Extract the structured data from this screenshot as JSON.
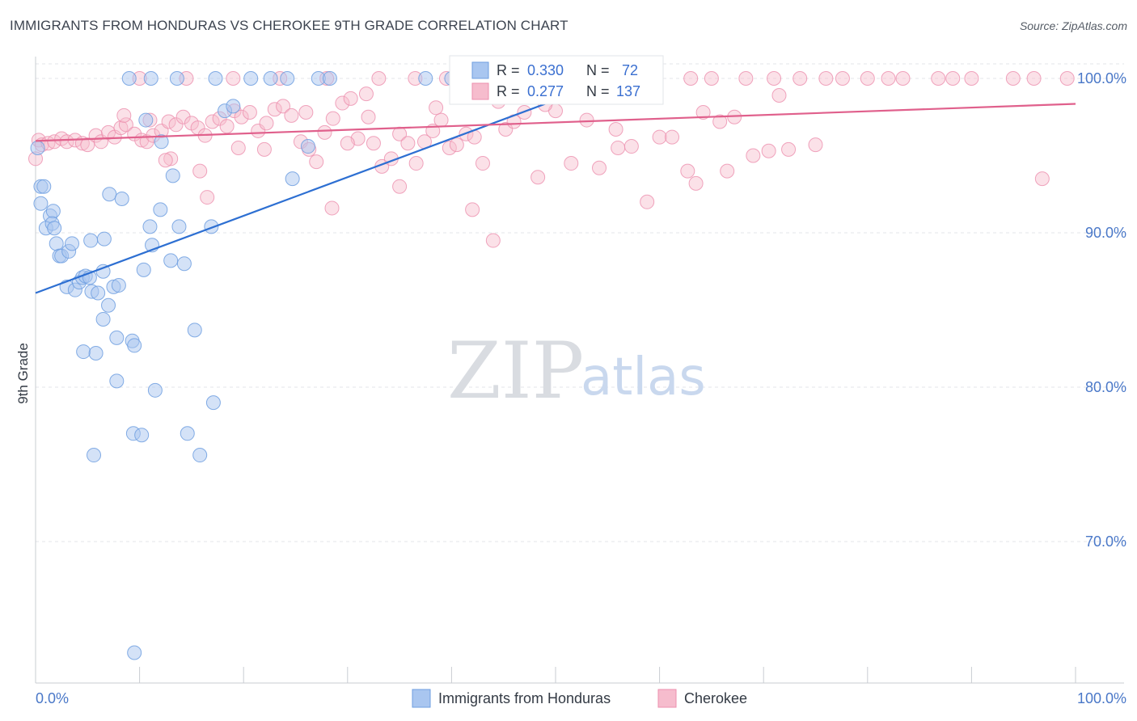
{
  "chart_data": {
    "type": "scatter",
    "title": "IMMIGRANTS FROM HONDURAS VS CHEROKEE 9TH GRADE CORRELATION CHART",
    "source": "Source: ZipAtlas.com",
    "xlabel": "",
    "ylabel": "9th Grade",
    "xlim": [
      0,
      100
    ],
    "ylim": [
      62,
      101.5
    ],
    "x_tick_labels": [
      "0.0%",
      "100.0%"
    ],
    "y_ticks": [
      70,
      80,
      90,
      100
    ],
    "y_tick_labels": [
      "70.0%",
      "80.0%",
      "90.0%",
      "100.0%"
    ],
    "grid": true,
    "watermark": {
      "zip": "ZIP",
      "atlas": "atlas"
    },
    "colors": {
      "honduras_fill": "#a9c6f0",
      "honduras_stroke": "#6f9fe0",
      "honduras_line": "#2d6fd2",
      "cherokee_fill": "#f6bccd",
      "cherokee_stroke": "#ec8fae",
      "cherokee_line": "#e0608c",
      "tick_label": "#4a78c8"
    },
    "legend": {
      "r_label": "R =",
      "n_label": "N =",
      "entries": [
        {
          "name": "Immigrants from Honduras",
          "r": "0.330",
          "n": "72"
        },
        {
          "name": "Cherokee",
          "r": "0.277",
          "n": "137"
        }
      ]
    },
    "series": [
      {
        "name": "Immigrants from Honduras",
        "trend": {
          "x": [
            0,
            50
          ],
          "y": [
            86.1,
            98.6
          ]
        },
        "points": [
          [
            0.2,
            95.5
          ],
          [
            0.5,
            93.0
          ],
          [
            0.8,
            93.0
          ],
          [
            0.5,
            91.9
          ],
          [
            1.4,
            91.1
          ],
          [
            1.7,
            91.4
          ],
          [
            1.0,
            90.3
          ],
          [
            1.6,
            90.6
          ],
          [
            1.8,
            90.3
          ],
          [
            2.0,
            89.3
          ],
          [
            2.3,
            88.5
          ],
          [
            2.5,
            88.5
          ],
          [
            3.2,
            88.8
          ],
          [
            3.5,
            89.3
          ],
          [
            3.0,
            86.5
          ],
          [
            3.8,
            86.3
          ],
          [
            4.2,
            86.8
          ],
          [
            4.5,
            87.1
          ],
          [
            4.8,
            87.2
          ],
          [
            5.2,
            87.1
          ],
          [
            5.4,
            86.2
          ],
          [
            6.0,
            86.1
          ],
          [
            5.3,
            89.5
          ],
          [
            6.5,
            87.5
          ],
          [
            6.6,
            89.6
          ],
          [
            7.0,
            85.3
          ],
          [
            6.5,
            84.4
          ],
          [
            7.5,
            86.5
          ],
          [
            8.0,
            86.6
          ],
          [
            7.1,
            92.5
          ],
          [
            8.3,
            92.2
          ],
          [
            9.3,
            83.0
          ],
          [
            9.5,
            82.7
          ],
          [
            7.8,
            83.2
          ],
          [
            4.6,
            82.3
          ],
          [
            5.8,
            82.2
          ],
          [
            7.8,
            80.4
          ],
          [
            9.4,
            77.0
          ],
          [
            10.2,
            76.9
          ],
          [
            5.6,
            75.6
          ],
          [
            9.5,
            62.8
          ],
          [
            10.4,
            87.6
          ],
          [
            11.2,
            89.2
          ],
          [
            11.0,
            90.4
          ],
          [
            12.0,
            91.5
          ],
          [
            12.1,
            95.9
          ],
          [
            10.6,
            97.3
          ],
          [
            13.2,
            93.7
          ],
          [
            13.0,
            88.2
          ],
          [
            14.3,
            88.0
          ],
          [
            13.8,
            90.4
          ],
          [
            15.3,
            83.7
          ],
          [
            14.6,
            77.0
          ],
          [
            15.8,
            75.6
          ],
          [
            17.1,
            79.0
          ],
          [
            11.5,
            79.8
          ],
          [
            16.9,
            90.4
          ],
          [
            18.2,
            97.9
          ],
          [
            19.0,
            98.2
          ],
          [
            22.6,
            100.0
          ],
          [
            24.2,
            100.0
          ],
          [
            27.2,
            100.0
          ],
          [
            28.3,
            100.0
          ],
          [
            26.2,
            95.6
          ],
          [
            24.7,
            93.5
          ],
          [
            20.7,
            100.0
          ],
          [
            17.3,
            100.0
          ],
          [
            13.6,
            100.0
          ],
          [
            11.1,
            100.0
          ],
          [
            9.0,
            100.0
          ],
          [
            40.0,
            100.0
          ],
          [
            37.5,
            100.0
          ]
        ]
      },
      {
        "name": "Cherokee",
        "trend": {
          "x": [
            0,
            100
          ],
          "y": [
            95.95,
            98.35
          ]
        },
        "points": [
          [
            0.3,
            96.0
          ],
          [
            0.6,
            95.7
          ],
          [
            1.2,
            95.8
          ],
          [
            1.8,
            95.9
          ],
          [
            2.5,
            96.1
          ],
          [
            3.0,
            95.9
          ],
          [
            3.8,
            96.0
          ],
          [
            4.5,
            95.8
          ],
          [
            5.0,
            95.7
          ],
          [
            5.8,
            96.3
          ],
          [
            6.3,
            95.9
          ],
          [
            7.0,
            96.5
          ],
          [
            7.6,
            96.2
          ],
          [
            8.2,
            96.8
          ],
          [
            8.7,
            97.0
          ],
          [
            9.5,
            96.4
          ],
          [
            10.2,
            96.0
          ],
          [
            10.7,
            95.9
          ],
          [
            11.3,
            96.3
          ],
          [
            12.1,
            96.6
          ],
          [
            12.8,
            97.2
          ],
          [
            13.5,
            97.0
          ],
          [
            14.2,
            97.5
          ],
          [
            15.0,
            97.1
          ],
          [
            15.6,
            96.8
          ],
          [
            16.3,
            96.3
          ],
          [
            17.0,
            97.2
          ],
          [
            17.7,
            97.4
          ],
          [
            18.4,
            96.9
          ],
          [
            19.1,
            97.9
          ],
          [
            19.8,
            97.5
          ],
          [
            20.6,
            97.8
          ],
          [
            21.4,
            96.6
          ],
          [
            22.2,
            97.1
          ],
          [
            23.0,
            98.0
          ],
          [
            23.8,
            98.2
          ],
          [
            24.6,
            97.6
          ],
          [
            25.5,
            95.9
          ],
          [
            26.3,
            95.4
          ],
          [
            27.0,
            94.6
          ],
          [
            27.8,
            96.5
          ],
          [
            28.6,
            97.4
          ],
          [
            29.5,
            98.4
          ],
          [
            30.3,
            98.7
          ],
          [
            31.0,
            96.1
          ],
          [
            31.8,
            99.0
          ],
          [
            32.5,
            95.8
          ],
          [
            33.3,
            94.3
          ],
          [
            34.2,
            94.8
          ],
          [
            35.0,
            96.4
          ],
          [
            35.8,
            95.8
          ],
          [
            36.6,
            94.5
          ],
          [
            37.4,
            95.9
          ],
          [
            38.2,
            96.6
          ],
          [
            39.0,
            97.3
          ],
          [
            39.8,
            95.5
          ],
          [
            40.5,
            95.7
          ],
          [
            41.4,
            96.4
          ],
          [
            42.2,
            96.2
          ],
          [
            43.0,
            94.5
          ],
          [
            44.0,
            89.5
          ],
          [
            45.2,
            96.7
          ],
          [
            46.0,
            97.2
          ],
          [
            47.0,
            97.8
          ],
          [
            48.3,
            93.6
          ],
          [
            50.0,
            97.9
          ],
          [
            51.5,
            94.5
          ],
          [
            53.0,
            97.3
          ],
          [
            54.2,
            94.2
          ],
          [
            55.8,
            96.7
          ],
          [
            57.3,
            95.6
          ],
          [
            58.8,
            92.0
          ],
          [
            60.0,
            96.2
          ],
          [
            61.2,
            96.2
          ],
          [
            62.7,
            94.0
          ],
          [
            63.5,
            93.2
          ],
          [
            64.2,
            97.8
          ],
          [
            65.8,
            97.2
          ],
          [
            67.2,
            97.5
          ],
          [
            69.0,
            95.0
          ],
          [
            71.5,
            98.9
          ],
          [
            72.4,
            95.4
          ],
          [
            75.0,
            95.7
          ],
          [
            77.6,
            100.0
          ],
          [
            80.0,
            100.0
          ],
          [
            83.4,
            100.0
          ],
          [
            86.8,
            100.0
          ],
          [
            88.2,
            100.0
          ],
          [
            94.0,
            100.0
          ],
          [
            96.0,
            100.0
          ],
          [
            96.8,
            93.5
          ],
          [
            99.2,
            100.0
          ],
          [
            73.5,
            100.0
          ],
          [
            68.3,
            100.0
          ],
          [
            63.0,
            100.0
          ],
          [
            57.8,
            100.0
          ],
          [
            52.5,
            100.0
          ],
          [
            47.2,
            100.0
          ],
          [
            41.9,
            100.0
          ],
          [
            36.5,
            100.0
          ],
          [
            33.0,
            100.0
          ],
          [
            28.0,
            100.0
          ],
          [
            23.5,
            100.0
          ],
          [
            19.0,
            100.0
          ],
          [
            14.5,
            100.0
          ],
          [
            10.0,
            100.0
          ],
          [
            39.5,
            100.0
          ],
          [
            43.8,
            100.0
          ],
          [
            48.0,
            100.0
          ],
          [
            55.0,
            100.0
          ],
          [
            59.6,
            100.0
          ],
          [
            65.0,
            100.0
          ],
          [
            71.0,
            100.0
          ],
          [
            76.0,
            100.0
          ],
          [
            82.0,
            100.0
          ],
          [
            90.0,
            100.0
          ],
          [
            8.5,
            97.6
          ],
          [
            11.0,
            97.3
          ],
          [
            13.0,
            94.8
          ],
          [
            12.5,
            94.7
          ],
          [
            15.8,
            94.0
          ],
          [
            16.5,
            92.3
          ],
          [
            19.5,
            95.5
          ],
          [
            22.0,
            95.4
          ],
          [
            28.5,
            91.6
          ],
          [
            35.0,
            93.0
          ],
          [
            42.0,
            91.5
          ],
          [
            30.0,
            95.8
          ],
          [
            32.0,
            97.5
          ],
          [
            26.0,
            97.8
          ],
          [
            38.5,
            98.1
          ],
          [
            44.5,
            98.5
          ],
          [
            49.0,
            98.3
          ],
          [
            56.0,
            95.5
          ],
          [
            66.5,
            94.0
          ],
          [
            70.5,
            95.3
          ],
          [
            0.0,
            94.8
          ]
        ]
      }
    ]
  }
}
